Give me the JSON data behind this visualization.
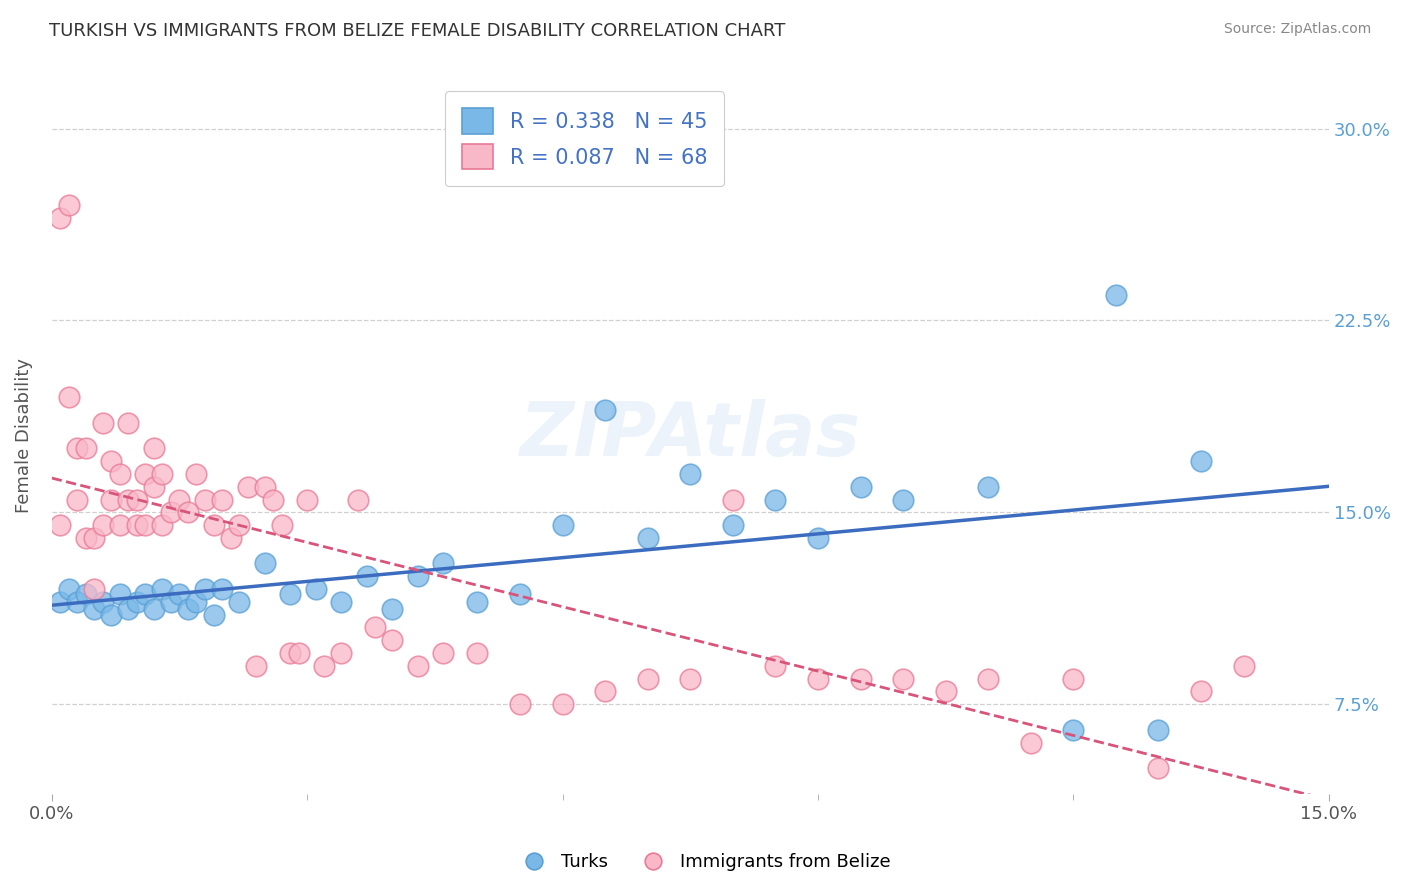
{
  "title": "TURKISH VS IMMIGRANTS FROM BELIZE FEMALE DISABILITY CORRELATION CHART",
  "source": "Source: ZipAtlas.com",
  "ylabel": "Female Disability",
  "xlim": [
    0.0,
    0.15
  ],
  "ylim": [
    0.04,
    0.32
  ],
  "y_ticks": [
    0.075,
    0.15,
    0.225,
    0.3
  ],
  "y_tick_labels_right": [
    "7.5%",
    "15.0%",
    "22.5%",
    "30.0%"
  ],
  "x_tick_labels": [
    "0.0%",
    "15.0%"
  ],
  "x_ticks": [
    0.0,
    0.15
  ],
  "turks_R": 0.338,
  "turks_N": 45,
  "belize_R": 0.087,
  "belize_N": 68,
  "turks_color": "#7ab8e8",
  "turks_edge": "#5a9fd4",
  "belize_color": "#f9b8c8",
  "belize_edge": "#e87a96",
  "background_color": "#ffffff",
  "grid_color": "#d0d0d0",
  "title_color": "#333333",
  "axis_label_color": "#555555",
  "tick_color_right": "#5a9fd4",
  "legend_color": "#4472c4",
  "turks_x": [
    0.001,
    0.002,
    0.003,
    0.004,
    0.005,
    0.006,
    0.007,
    0.008,
    0.009,
    0.01,
    0.011,
    0.012,
    0.013,
    0.014,
    0.015,
    0.016,
    0.017,
    0.018,
    0.019,
    0.02,
    0.022,
    0.025,
    0.028,
    0.031,
    0.034,
    0.037,
    0.04,
    0.043,
    0.046,
    0.05,
    0.055,
    0.06,
    0.065,
    0.07,
    0.075,
    0.08,
    0.085,
    0.09,
    0.095,
    0.1,
    0.11,
    0.12,
    0.125,
    0.13,
    0.135
  ],
  "turks_y": [
    0.115,
    0.12,
    0.115,
    0.118,
    0.112,
    0.115,
    0.11,
    0.118,
    0.112,
    0.115,
    0.118,
    0.112,
    0.12,
    0.115,
    0.118,
    0.112,
    0.115,
    0.12,
    0.11,
    0.12,
    0.115,
    0.13,
    0.118,
    0.12,
    0.115,
    0.125,
    0.112,
    0.125,
    0.13,
    0.115,
    0.118,
    0.145,
    0.19,
    0.14,
    0.165,
    0.145,
    0.155,
    0.14,
    0.16,
    0.155,
    0.16,
    0.065,
    0.235,
    0.065,
    0.17
  ],
  "belize_x": [
    0.001,
    0.001,
    0.002,
    0.002,
    0.003,
    0.003,
    0.004,
    0.004,
    0.005,
    0.005,
    0.006,
    0.006,
    0.007,
    0.007,
    0.008,
    0.008,
    0.009,
    0.009,
    0.01,
    0.01,
    0.011,
    0.011,
    0.012,
    0.012,
    0.013,
    0.013,
    0.014,
    0.015,
    0.016,
    0.017,
    0.018,
    0.019,
    0.02,
    0.021,
    0.022,
    0.023,
    0.024,
    0.025,
    0.026,
    0.027,
    0.028,
    0.029,
    0.03,
    0.032,
    0.034,
    0.036,
    0.038,
    0.04,
    0.043,
    0.046,
    0.05,
    0.055,
    0.06,
    0.065,
    0.07,
    0.075,
    0.08,
    0.085,
    0.09,
    0.095,
    0.1,
    0.105,
    0.11,
    0.115,
    0.12,
    0.13,
    0.135,
    0.14
  ],
  "belize_y": [
    0.145,
    0.265,
    0.195,
    0.27,
    0.155,
    0.175,
    0.14,
    0.175,
    0.14,
    0.12,
    0.185,
    0.145,
    0.155,
    0.17,
    0.145,
    0.165,
    0.155,
    0.185,
    0.155,
    0.145,
    0.145,
    0.165,
    0.16,
    0.175,
    0.145,
    0.165,
    0.15,
    0.155,
    0.15,
    0.165,
    0.155,
    0.145,
    0.155,
    0.14,
    0.145,
    0.16,
    0.09,
    0.16,
    0.155,
    0.145,
    0.095,
    0.095,
    0.155,
    0.09,
    0.095,
    0.155,
    0.105,
    0.1,
    0.09,
    0.095,
    0.095,
    0.075,
    0.075,
    0.08,
    0.085,
    0.085,
    0.155,
    0.09,
    0.085,
    0.085,
    0.085,
    0.08,
    0.085,
    0.06,
    0.085,
    0.05,
    0.08,
    0.09
  ]
}
